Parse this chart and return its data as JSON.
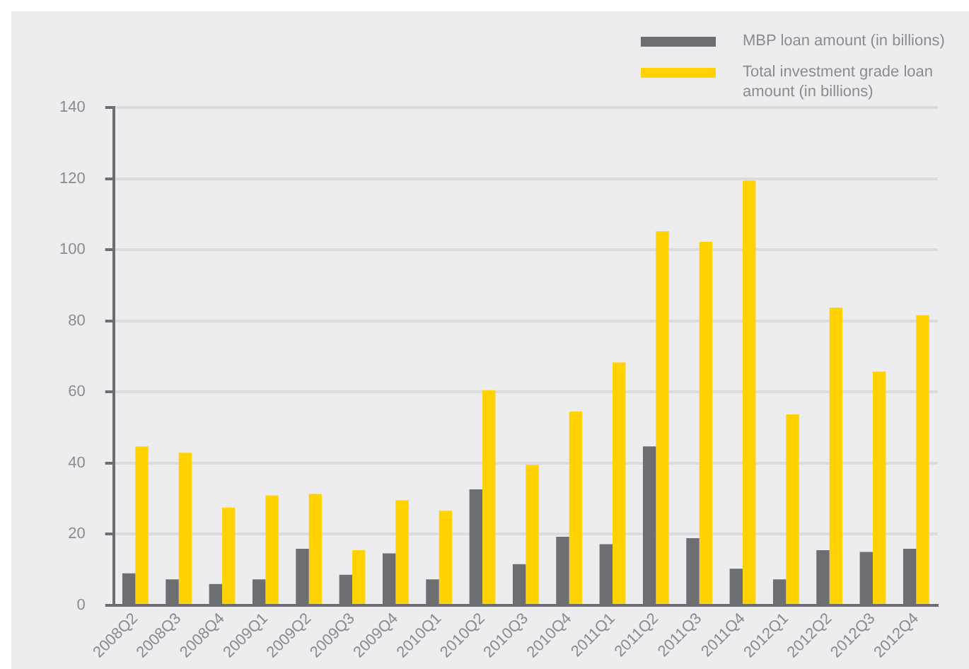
{
  "chart_data": {
    "type": "bar",
    "categories": [
      "2008Q2",
      "2008Q3",
      "2008Q4",
      "2009Q1",
      "2009Q2",
      "2009Q3",
      "2009Q4",
      "2010Q1",
      "2010Q2",
      "2010Q3",
      "2010Q4",
      "2011Q1",
      "2011Q2",
      "2011Q3",
      "2011Q4",
      "2012Q1",
      "2012Q2",
      "2012Q3",
      "2012Q4"
    ],
    "series": [
      {
        "name": "MBP loan amount (in billions)",
        "color": "#6d6e71",
        "values": [
          9.0,
          7.3,
          6.0,
          7.3,
          15.9,
          8.6,
          14.6,
          7.3,
          32.6,
          11.6,
          19.3,
          17.2,
          44.7,
          18.9,
          10.3,
          7.3,
          15.5,
          15.0,
          15.9
        ]
      },
      {
        "name": "Total investment grade loan amount (in billions)",
        "color": "#ffd200",
        "values": [
          44.7,
          42.9,
          27.5,
          30.9,
          31.3,
          15.5,
          29.6,
          26.6,
          60.5,
          39.5,
          54.5,
          68.3,
          105.2,
          102.2,
          119.4,
          53.7,
          83.7,
          65.7,
          81.6
        ]
      }
    ],
    "ylim": [
      0,
      140
    ],
    "yticks": [
      0,
      20,
      40,
      60,
      80,
      100,
      120,
      140
    ],
    "grid": "y",
    "legend": "top right"
  }
}
